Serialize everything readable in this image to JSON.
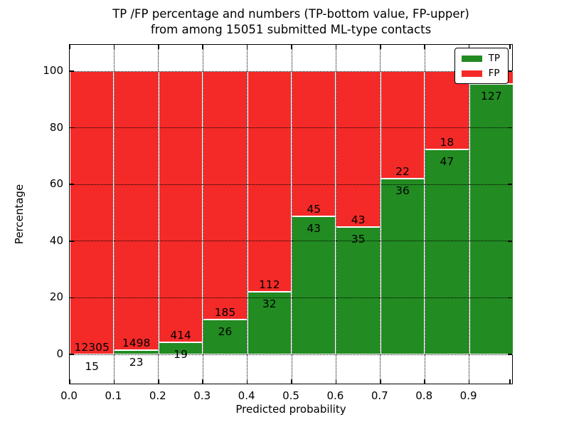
{
  "title": {
    "line1": "TP /FP percentage and numbers (TP-bottom value, FP-upper)",
    "line2": "from among 15051 submitted ML-type contacts"
  },
  "axes": {
    "xlabel": "Predicted probability",
    "ylabel": "Percentage",
    "x_tick_labels": [
      "0.0",
      "0.1",
      "0.2",
      "0.3",
      "0.4",
      "0.5",
      "0.6",
      "0.7",
      "0.8",
      "0.9"
    ],
    "y_tick_labels": [
      "0",
      "20",
      "40",
      "60",
      "80",
      "100"
    ],
    "y_tick_values": [
      0,
      20,
      40,
      60,
      80,
      100
    ]
  },
  "legend": {
    "items": [
      {
        "label": "TP",
        "color": "#228b22"
      },
      {
        "label": "FP",
        "color": "#f42a28"
      }
    ]
  },
  "colors": {
    "tp": "#228b22",
    "fp": "#f42a28",
    "grid": "#000000",
    "bar_edge": "#ffffff",
    "background": "#ffffff"
  },
  "chart_data": {
    "type": "bar",
    "stacked": true,
    "normalized_to_percent": true,
    "title": "TP /FP percentage and numbers (TP-bottom value, FP-upper) from among 15051 submitted ML-type contacts",
    "xlabel": "Predicted probability",
    "ylabel": "Percentage",
    "xlim": [
      0.0,
      1.0
    ],
    "ylim": [
      -11,
      109
    ],
    "bin_width": 0.1,
    "bin_starts": [
      0.0,
      0.1,
      0.2,
      0.3,
      0.4,
      0.5,
      0.6,
      0.7,
      0.8,
      0.9
    ],
    "grid": true,
    "legend_position": "upper right",
    "series": [
      {
        "name": "TP",
        "counts": [
          15,
          23,
          19,
          26,
          32,
          43,
          35,
          36,
          47,
          127
        ],
        "pct": [
          0.12,
          1.51,
          4.39,
          12.32,
          22.22,
          48.86,
          44.87,
          62.07,
          72.31,
          95.49
        ]
      },
      {
        "name": "FP",
        "counts": [
          12305,
          1498,
          414,
          185,
          112,
          45,
          43,
          22,
          18,
          null
        ],
        "pct": [
          99.88,
          98.49,
          95.61,
          87.68,
          77.78,
          51.14,
          55.13,
          37.93,
          27.69,
          4.51
        ]
      }
    ],
    "tp_labels": [
      "15",
      "23",
      "19",
      "26",
      "32",
      "43",
      "35",
      "36",
      "47",
      "127"
    ],
    "fp_labels": [
      "12305",
      "1498",
      "414",
      "185",
      "112",
      "45",
      "43",
      "22",
      "18",
      ""
    ]
  }
}
